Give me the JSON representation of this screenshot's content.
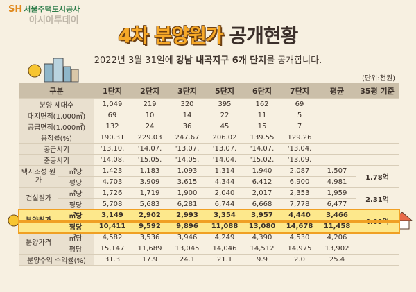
{
  "header": {
    "logo": "서울주택도시공사",
    "watermark": "아시아투데이",
    "title_highlight": "4차 분양원가",
    "title_rest": "공개현황",
    "subtitle_pre": "2022년 3월 31일에",
    "subtitle_bold": "강남 내곡지구 6개 단지",
    "subtitle_post": "를 공개합니다.",
    "unit": "(단위:천원)"
  },
  "table": {
    "columns": [
      "구분",
      "1단지",
      "2단지",
      "3단지",
      "5단지",
      "6단지",
      "7단지",
      "평균",
      "35평 기준"
    ],
    "simple_rows": [
      {
        "label": "분양 세대수",
        "cells": [
          "1,049",
          "219",
          "320",
          "395",
          "162",
          "69"
        ]
      },
      {
        "label": "대지면적(1,000㎡)",
        "cells": [
          "69",
          "10",
          "14",
          "22",
          "11",
          "5"
        ]
      },
      {
        "label": "공급면적(1,000㎡)",
        "cells": [
          "132",
          "24",
          "36",
          "45",
          "15",
          "7"
        ]
      },
      {
        "label": "용적률(%)",
        "cells": [
          "190.31",
          "229.03",
          "247.67",
          "206.02",
          "139.55",
          "129.26"
        ]
      },
      {
        "label": "공급시기",
        "cells": [
          "'13.10.",
          "'14.07.",
          "'13.07.",
          "'13.07.",
          "'14.07.",
          "'13.04."
        ]
      },
      {
        "label": "준공시기",
        "cells": [
          "'14.08.",
          "'15.05.",
          "'14.05.",
          "'14.04.",
          "'15.02.",
          "'13.09."
        ]
      }
    ],
    "groups": [
      {
        "label": "택지조성 원가",
        "per35": "1.78억",
        "rows": [
          {
            "unit": "㎡당",
            "cells": [
              "1,423",
              "1,183",
              "1,093",
              "1,314",
              "1,940",
              "2,087",
              "1,507"
            ]
          },
          {
            "unit": "평당",
            "cells": [
              "4,703",
              "3,909",
              "3,615",
              "4,344",
              "6,412",
              "6,900",
              "4,981"
            ]
          }
        ]
      },
      {
        "label": "건설원가",
        "per35": "2.31억",
        "rows": [
          {
            "unit": "㎡당",
            "cells": [
              "1,726",
              "1,719",
              "1,900",
              "2,040",
              "2,017",
              "2,353",
              "1,959"
            ]
          },
          {
            "unit": "평당",
            "cells": [
              "5,708",
              "5,683",
              "6,281",
              "6,744",
              "6,668",
              "7,778",
              "6,477"
            ]
          }
        ]
      },
      {
        "label": "분양원가",
        "per35": "4.09억",
        "highlight": true,
        "rows": [
          {
            "unit": "㎡당",
            "cells": [
              "3,149",
              "2,902",
              "2,993",
              "3,354",
              "3,957",
              "4,440",
              "3,466"
            ]
          },
          {
            "unit": "평당",
            "cells": [
              "10,411",
              "9,592",
              "9,896",
              "11,088",
              "13,080",
              "14,678",
              "11,458"
            ]
          }
        ]
      },
      {
        "label": "분양가격",
        "rows": [
          {
            "unit": "㎡당",
            "cells": [
              "4,582",
              "3,536",
              "3,946",
              "4,249",
              "4,390",
              "4,530",
              "4,206"
            ]
          },
          {
            "unit": "평당",
            "cells": [
              "15,147",
              "11,689",
              "13,045",
              "14,046",
              "14,512",
              "14,975",
              "13,902"
            ]
          }
        ]
      }
    ],
    "yield_row": {
      "label": "분양수익 수익률(%)",
      "cells": [
        "31.3",
        "17.9",
        "24.1",
        "21.1",
        "9.9",
        "2.0",
        "25.4"
      ]
    }
  }
}
